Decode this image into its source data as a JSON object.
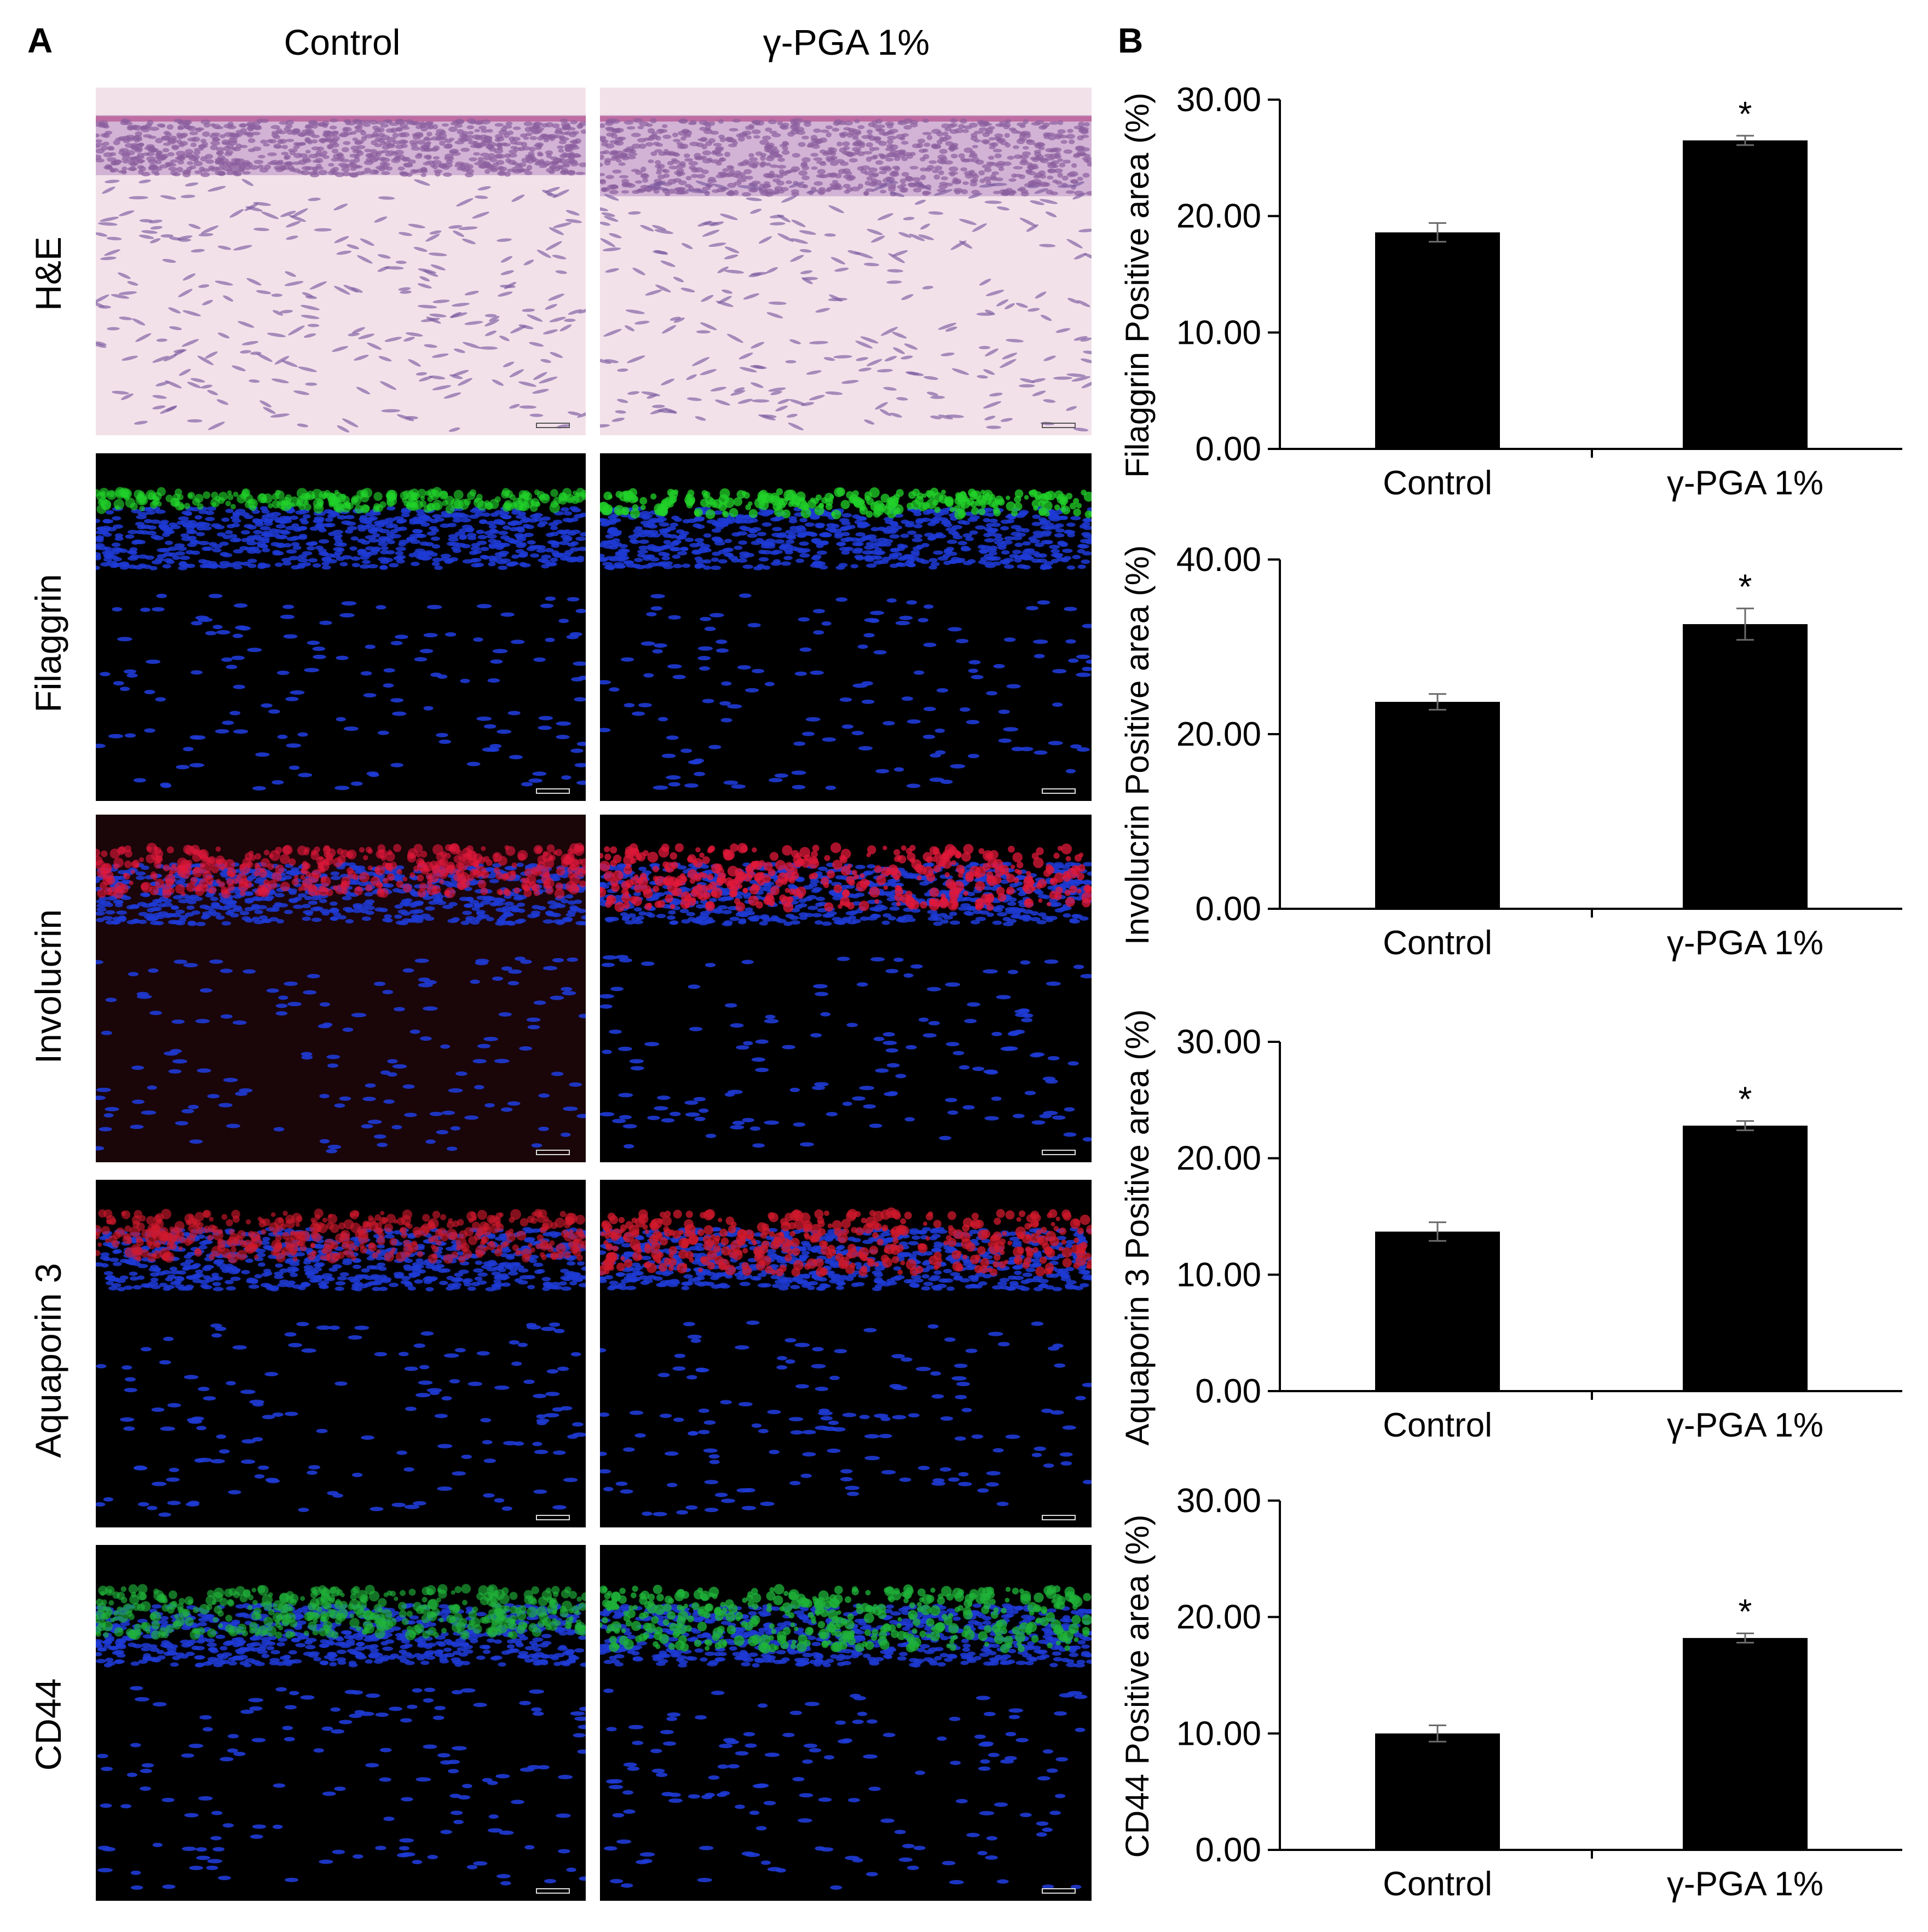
{
  "panel_a": {
    "letter": "A",
    "columns": [
      "Control",
      "γ-PGA 1%"
    ],
    "rows": [
      "H&E",
      "Filaggrin",
      "Involucrin",
      "Aquaporin 3",
      "CD44"
    ]
  },
  "panel_b": {
    "letter": "B"
  },
  "colors": {
    "he_bg": "#f3e1ea",
    "he_nuclei": "#7b5aa0",
    "he_epidermis": "#8c5f9e",
    "if_bg": "#000000",
    "nuclei_blue": "#1f3bd6",
    "filaggrin_green": "#22d22a",
    "involucrin_red": "#e0183a",
    "aquaporin_red": "#d01a2c",
    "cd44_green": "#1fb43a",
    "bar": "#000000"
  },
  "chart_data": [
    {
      "type": "bar",
      "categories": [
        "Control",
        "γ-PGA 1%"
      ],
      "values": [
        18.6,
        26.5
      ],
      "errors": [
        0.8,
        0.4
      ],
      "significance": [
        "",
        "*"
      ],
      "ylabel": "Filaggrin Positive area (%)",
      "ylim": [
        0,
        30
      ],
      "yticks": [
        "0.00",
        "10.00",
        "20.00",
        "30.00"
      ]
    },
    {
      "type": "bar",
      "categories": [
        "Control",
        "γ-PGA 1%"
      ],
      "values": [
        23.7,
        32.6
      ],
      "errors": [
        0.9,
        1.8
      ],
      "significance": [
        "",
        "*"
      ],
      "ylabel": "Involucrin Positive area (%)",
      "ylim": [
        0,
        40
      ],
      "yticks": [
        "0.00",
        "20.00",
        "40.00"
      ]
    },
    {
      "type": "bar",
      "categories": [
        "Control",
        "γ-PGA 1%"
      ],
      "values": [
        13.7,
        22.8
      ],
      "errors": [
        0.8,
        0.4
      ],
      "significance": [
        "",
        "*"
      ],
      "ylabel": "Aquaporin 3 Positive area (%)",
      "ylim": [
        0,
        30
      ],
      "yticks": [
        "0.00",
        "10.00",
        "20.00",
        "30.00"
      ]
    },
    {
      "type": "bar",
      "categories": [
        "Control",
        "γ-PGA 1%"
      ],
      "values": [
        10.0,
        18.2
      ],
      "errors": [
        0.7,
        0.4
      ],
      "significance": [
        "",
        "*"
      ],
      "ylabel": "CD44 Positive area (%)",
      "ylim": [
        0,
        30
      ],
      "yticks": [
        "0.00",
        "10.00",
        "20.00",
        "30.00"
      ]
    }
  ]
}
